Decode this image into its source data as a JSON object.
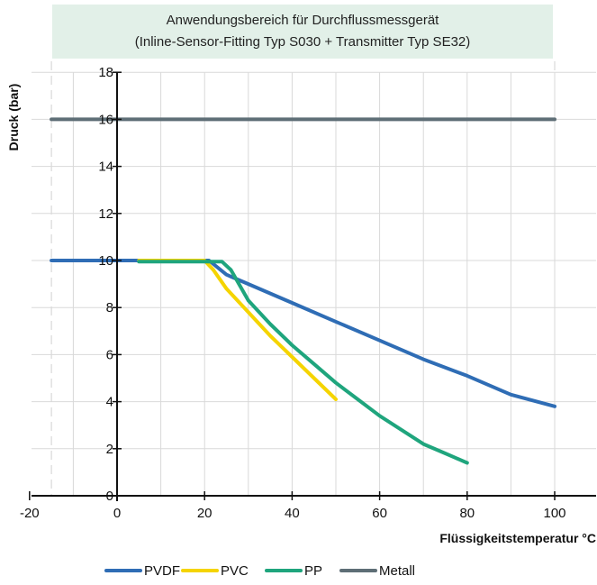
{
  "chart_data": {
    "type": "line",
    "title_line1": "Anwendungsbereich für Durchflussmessgerät",
    "title_line2": "(Inline-Sensor-Fitting Typ S030 + Transmitter Typ SE32)",
    "xlabel": "Flüssigkeitstemperatur °C",
    "ylabel": "Druck (bar)",
    "xlim": [
      -20,
      110
    ],
    "ylim": [
      0,
      18
    ],
    "x_ticks": [
      -20,
      0,
      20,
      40,
      60,
      80,
      100
    ],
    "y_ticks": [
      0,
      2,
      4,
      6,
      8,
      10,
      12,
      14,
      16,
      18
    ],
    "grid": true,
    "legend_position": "bottom",
    "series": [
      {
        "name": "PVDF",
        "color": "#2f6db5",
        "points": [
          [
            -15,
            10
          ],
          [
            21,
            10
          ],
          [
            25,
            9.4
          ],
          [
            30,
            9.0
          ],
          [
            40,
            8.2
          ],
          [
            50,
            7.4
          ],
          [
            60,
            6.6
          ],
          [
            70,
            5.8
          ],
          [
            80,
            5.1
          ],
          [
            90,
            4.3
          ],
          [
            100,
            3.8
          ]
        ]
      },
      {
        "name": "PVC",
        "color": "#f5d400",
        "points": [
          [
            5,
            10
          ],
          [
            20,
            10
          ],
          [
            22,
            9.6
          ],
          [
            25,
            8.8
          ],
          [
            30,
            7.8
          ],
          [
            35,
            6.8
          ],
          [
            40,
            5.9
          ],
          [
            45,
            5.0
          ],
          [
            50,
            4.1
          ]
        ]
      },
      {
        "name": "PP",
        "color": "#1fa57d",
        "points": [
          [
            5,
            9.95
          ],
          [
            24,
            9.95
          ],
          [
            26,
            9.6
          ],
          [
            30,
            8.3
          ],
          [
            35,
            7.3
          ],
          [
            40,
            6.4
          ],
          [
            45,
            5.6
          ],
          [
            50,
            4.8
          ],
          [
            55,
            4.1
          ],
          [
            60,
            3.4
          ],
          [
            65,
            2.8
          ],
          [
            70,
            2.2
          ],
          [
            75,
            1.8
          ],
          [
            80,
            1.4
          ]
        ]
      },
      {
        "name": "Metall",
        "color": "#5e6e76",
        "points": [
          [
            -15,
            16
          ],
          [
            100,
            16
          ]
        ]
      }
    ]
  }
}
